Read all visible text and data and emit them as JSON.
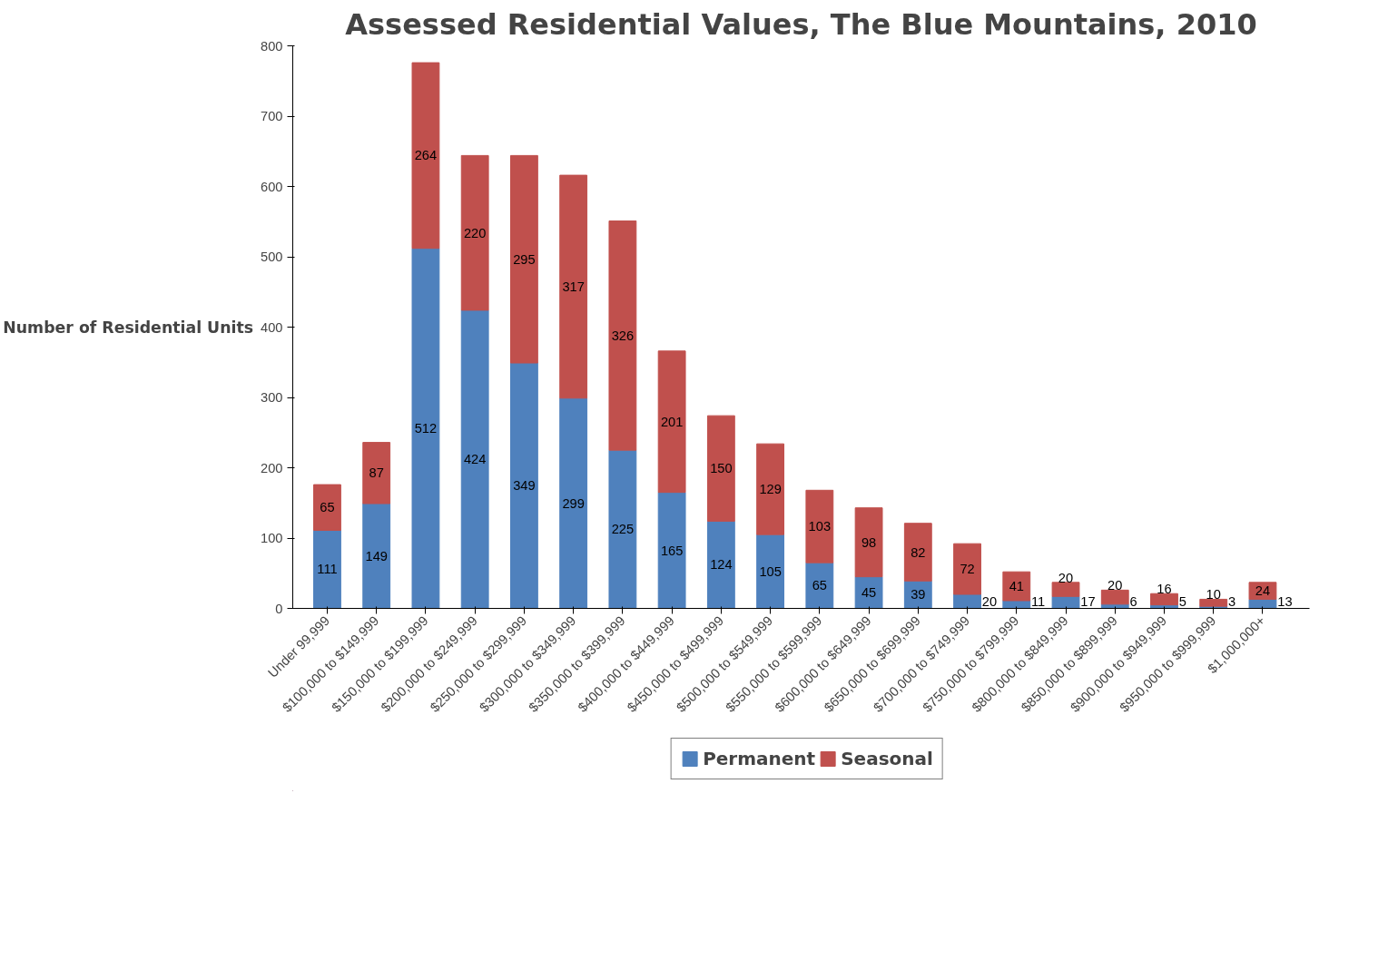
{
  "chart_data": {
    "type": "bar",
    "title": "Assessed Residential Values, The Blue Mountains, 2010",
    "ylabel": "Number of Residential Units",
    "categories": [
      "Under 99,999",
      "$100,000 to $149,999",
      "$150,000 to $199,999",
      "$200,000 to $249,999",
      "$250,000 to $299,999",
      "$300,000 to $349,999",
      "$350,000 to $399,999",
      "$400,000 to $449,999",
      "$450,000 to $499,999",
      "$500,000 to $549,999",
      "$550,000 to $599,999",
      "$600,000 to $649,999",
      "$650,000 to $699,999",
      "$700,000 to $749,999",
      "$750,000 to $799,999",
      "$800,000 to $849,999",
      "$850,000 to $899,999",
      "$900,000 to $949,999",
      "$950,000 to $999,999",
      "$1,000,000+"
    ],
    "series": [
      {
        "name": "Permanent",
        "color": "#4f81bd",
        "values": [
          111,
          149,
          512,
          424,
          349,
          299,
          225,
          165,
          124,
          105,
          65,
          45,
          39,
          20,
          11,
          17,
          6,
          5,
          3,
          13
        ]
      },
      {
        "name": "Seasonal",
        "color": "#c0504d",
        "values": [
          65,
          87,
          264,
          220,
          295,
          317,
          326,
          201,
          150,
          129,
          103,
          98,
          82,
          72,
          41,
          20,
          20,
          16,
          10,
          24
        ]
      }
    ],
    "stacked": true,
    "ylim": [
      0,
      800
    ],
    "yticks": [
      0,
      100,
      200,
      300,
      400,
      500,
      600,
      700,
      800
    ],
    "data_labels": true,
    "legend": "bottom",
    "grid": false
  }
}
